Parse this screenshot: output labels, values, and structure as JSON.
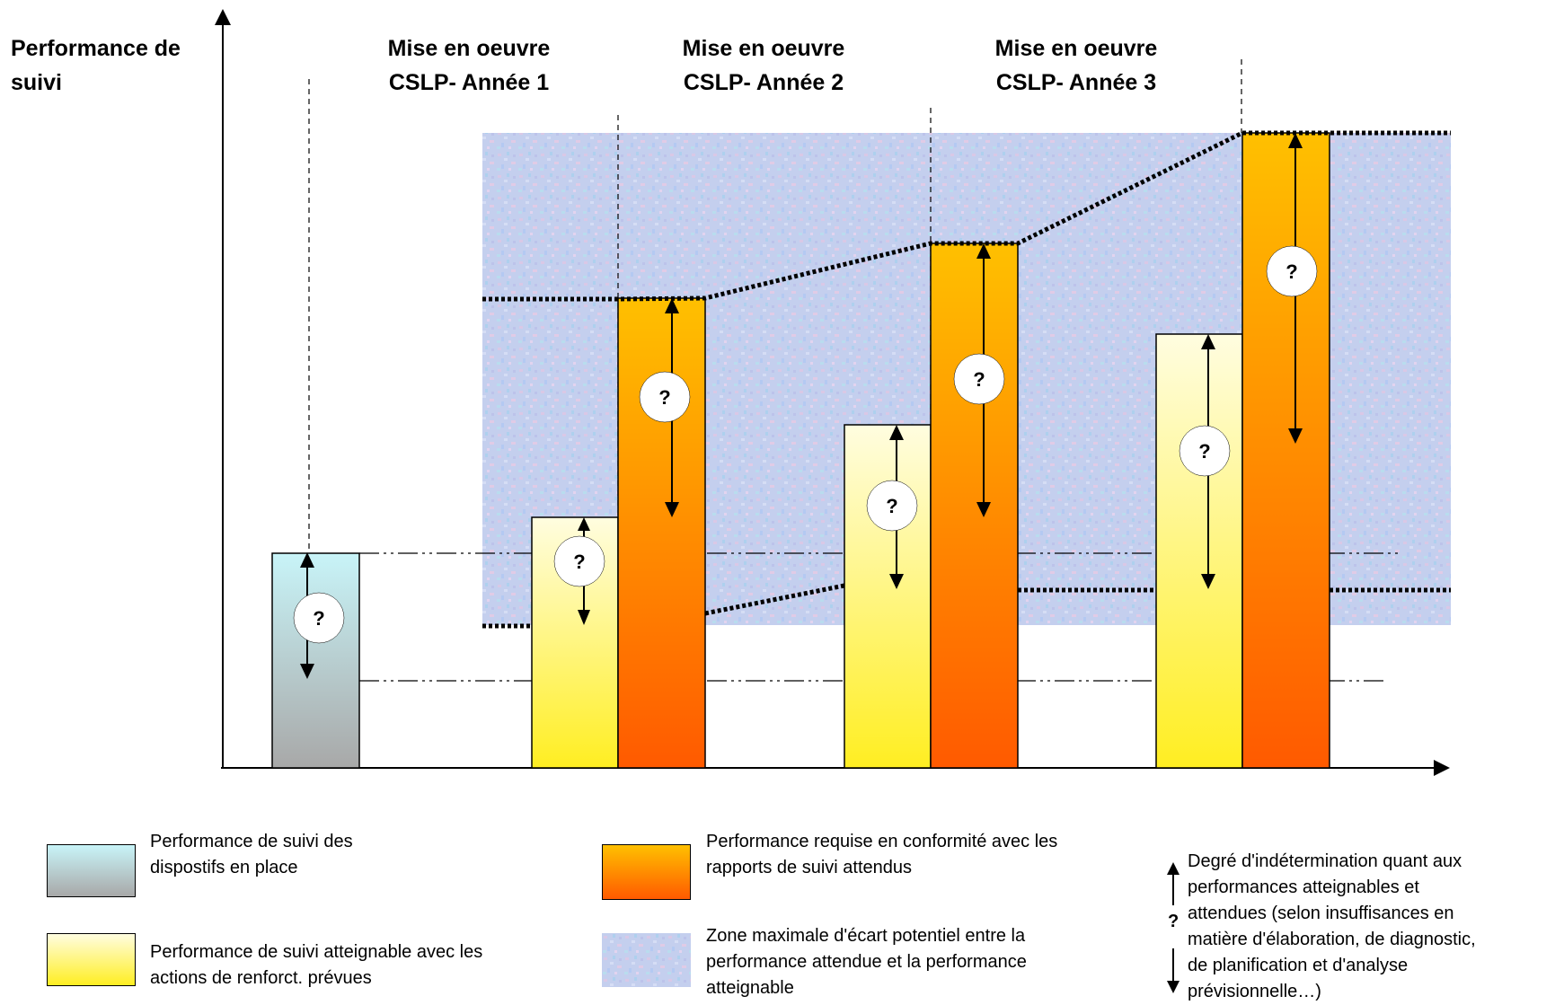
{
  "y_axis_title": [
    "Performance de",
    "suivi"
  ],
  "phases": [
    {
      "line1": "Mise en oeuvre",
      "line2": "CSLP- Année 1"
    },
    {
      "line1": "Mise en oeuvre",
      "line2": "CSLP- Année 2"
    },
    {
      "line1": "Mise en oeuvre",
      "line2": "CSLP- Année 3"
    }
  ],
  "question_mark": "?",
  "legend": {
    "current": [
      "Performance de suivi des",
      "dispostifs en place"
    ],
    "attainable": [
      "Performance de suivi atteignable avec les",
      "actions de renforct. prévues"
    ],
    "required": [
      "Performance requise en conformité avec  les",
      "rapports de suivi attendus"
    ],
    "zone": [
      "Zone maximale d'écart potentiel entre la",
      "performance attendue et la performance",
      "atteignable"
    ],
    "uncertainty": [
      "Degré d'indétermination quant aux",
      "performances atteignables et",
      "attendues (selon insuffisances en",
      "matière d'élaboration,  de diagnostic,",
      "de planification et d'analyse",
      "prévisionnelle…)"
    ]
  },
  "colors": {
    "current_top": "#c8f4f8",
    "current_bottom": "#a8a8a8",
    "attainable_top": "#fffde0",
    "attainable_bottom": "#ffee22",
    "required_top": "#ffc000",
    "required_bottom": "#ff5a00",
    "zone": "#c2cdee"
  }
}
